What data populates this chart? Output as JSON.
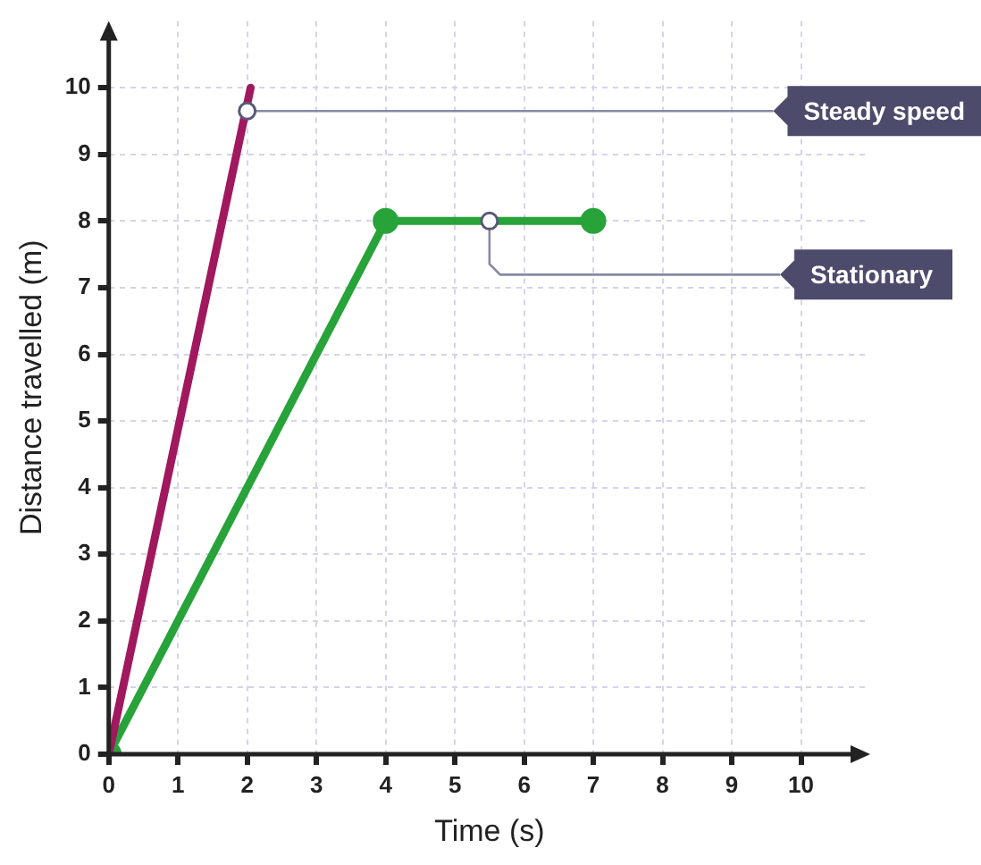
{
  "chart_data": {
    "type": "line",
    "xlabel": "Time (s)",
    "ylabel": "Distance travelled (m)",
    "xlim": [
      0,
      11
    ],
    "ylim": [
      0,
      11
    ],
    "xticks": [
      0,
      1,
      2,
      3,
      4,
      5,
      6,
      7,
      8,
      9,
      10
    ],
    "yticks": [
      0,
      1,
      2,
      3,
      4,
      5,
      6,
      7,
      8,
      9,
      10
    ],
    "grid": true,
    "line_style": "solid",
    "series": [
      {
        "color": "#a0185e",
        "x": [
          0,
          2.05
        ],
        "values": [
          0,
          10
        ],
        "marker": "none"
      },
      {
        "color": "#27a339",
        "x": [
          0,
          4,
          7
        ],
        "values": [
          0,
          8,
          8
        ],
        "marker": "circle"
      }
    ],
    "annotations": [
      {
        "text": "Steady speed",
        "x": 2,
        "y": 9.65
      },
      {
        "text": "Stationary",
        "x": 5.5,
        "y": 8
      }
    ]
  }
}
